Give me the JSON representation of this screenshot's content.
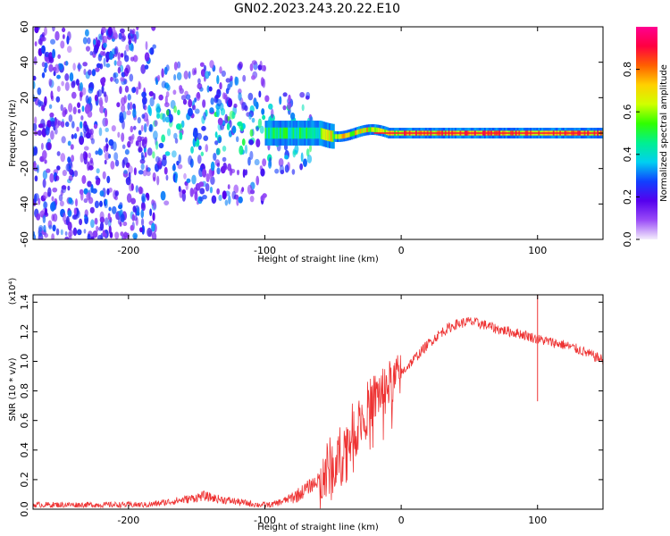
{
  "figure_title": "GN02.2023.243.20.22.E10",
  "chart_data": [
    {
      "type": "heatmap",
      "xlabel": "Height of straight line (km)",
      "ylabel": "Frequency (Hz)",
      "xlim": [
        -270,
        148
      ],
      "ylim": [
        -60,
        60
      ],
      "x_ticks": [
        -200,
        -100,
        0,
        100
      ],
      "y_ticks": [
        -60,
        -40,
        -20,
        0,
        20,
        40,
        60
      ],
      "colorbar": {
        "label": "Normalized spectral amplitude",
        "range": [
          0,
          1
        ],
        "ticks": [
          "0.0",
          "0.2",
          "0.4",
          "0.6",
          "0.8"
        ],
        "colors": [
          "#f4eefc",
          "#9a4cf7",
          "#5500ee",
          "#1040ff",
          "#00d0f0",
          "#00f090",
          "#30ff00",
          "#d0ff00",
          "#ffd000",
          "#ff6000",
          "#ff0040",
          "#ff0090"
        ]
      },
      "description_free_features": {
        "noise_region_x": [
          -270,
          -65
        ],
        "band_center_freq_hz": 0,
        "band_halfwidth_hz": 3
      }
    },
    {
      "type": "line",
      "xlabel": "Height of straight line (km)",
      "ylabel": "SNR (10 * v/v)",
      "y_multiplier": "(x10⁴)",
      "xlim": [
        -270,
        148
      ],
      "ylim": [
        0,
        1.45
      ],
      "x_ticks": [
        -200,
        -100,
        0,
        100
      ],
      "y_ticks": [
        "0.0",
        "0.2",
        "0.4",
        "0.6",
        "0.8",
        "1.0",
        "1.2",
        "1.4"
      ],
      "series": [
        {
          "color": "#ee3333",
          "x": [
            -270,
            -240,
            -210,
            -185,
            -170,
            -155,
            -145,
            -135,
            -120,
            -105,
            -95,
            -85,
            -75,
            -68,
            -60,
            -52,
            -45,
            -38,
            -30,
            -22,
            -15,
            -8,
            0,
            10,
            20,
            30,
            40,
            50,
            60,
            70,
            80,
            90,
            100,
            110,
            120,
            130,
            140,
            148
          ],
          "y": [
            0.03,
            0.03,
            0.03,
            0.03,
            0.05,
            0.07,
            0.09,
            0.07,
            0.05,
            0.03,
            0.03,
            0.06,
            0.1,
            0.15,
            0.2,
            0.27,
            0.35,
            0.48,
            0.6,
            0.72,
            0.8,
            0.85,
            0.92,
            1.02,
            1.12,
            1.2,
            1.25,
            1.27,
            1.25,
            1.22,
            1.2,
            1.18,
            1.15,
            1.13,
            1.11,
            1.08,
            1.04,
            1.01
          ],
          "spike": {
            "x": 100,
            "y_max": 1.45,
            "y_min": 0.73
          }
        }
      ]
    }
  ]
}
